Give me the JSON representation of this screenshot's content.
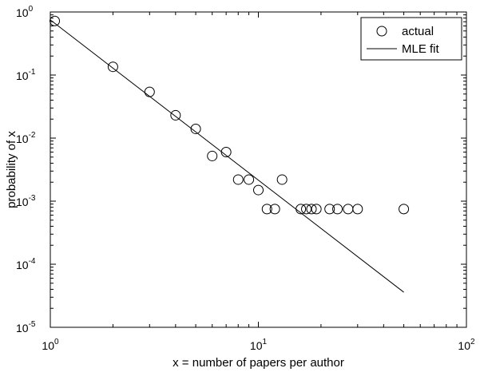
{
  "chart_data": {
    "type": "scatter",
    "xscale": "log",
    "yscale": "log",
    "xlim": [
      1,
      100
    ],
    "ylim": [
      1e-05,
      1
    ],
    "xlabel": "x = number of papers per author",
    "ylabel": "probability of x",
    "xticks": [
      {
        "value": 1,
        "base": "10",
        "exp": "0"
      },
      {
        "value": 10,
        "base": "10",
        "exp": "1"
      },
      {
        "value": 100,
        "base": "10",
        "exp": "2"
      }
    ],
    "yticks": [
      {
        "value": 1,
        "base": "10",
        "exp": "0"
      },
      {
        "value": 0.1,
        "base": "10",
        "exp": "-1"
      },
      {
        "value": 0.01,
        "base": "10",
        "exp": "-2"
      },
      {
        "value": 0.001,
        "base": "10",
        "exp": "-3"
      },
      {
        "value": 0.0001,
        "base": "10",
        "exp": "-4"
      },
      {
        "value": 1e-05,
        "base": "10",
        "exp": "-5"
      }
    ],
    "legend": {
      "position": "top-right",
      "entries": [
        {
          "label": "actual",
          "marker": "circle"
        },
        {
          "label": "MLE fit",
          "marker": "line"
        }
      ]
    },
    "series": [
      {
        "name": "actual",
        "kind": "scatter",
        "marker": "open-circle",
        "points": [
          {
            "x": 1.05,
            "y": 0.72
          },
          {
            "x": 2,
            "y": 0.135
          },
          {
            "x": 3,
            "y": 0.054
          },
          {
            "x": 4,
            "y": 0.023
          },
          {
            "x": 5,
            "y": 0.014
          },
          {
            "x": 6,
            "y": 0.0052
          },
          {
            "x": 7,
            "y": 0.006
          },
          {
            "x": 8,
            "y": 0.0022
          },
          {
            "x": 9,
            "y": 0.0022
          },
          {
            "x": 10,
            "y": 0.0015
          },
          {
            "x": 11,
            "y": 0.00075
          },
          {
            "x": 12,
            "y": 0.00075
          },
          {
            "x": 13,
            "y": 0.0022
          },
          {
            "x": 16,
            "y": 0.00075
          },
          {
            "x": 17,
            "y": 0.00075
          },
          {
            "x": 18,
            "y": 0.00075
          },
          {
            "x": 19,
            "y": 0.00075
          },
          {
            "x": 22,
            "y": 0.00075
          },
          {
            "x": 24,
            "y": 0.00075
          },
          {
            "x": 27,
            "y": 0.00075
          },
          {
            "x": 30,
            "y": 0.00075
          },
          {
            "x": 50,
            "y": 0.00075
          }
        ]
      },
      {
        "name": "MLE fit",
        "kind": "line",
        "points": [
          {
            "x": 1,
            "y": 0.75
          },
          {
            "x": 50,
            "y": 3.6e-05
          }
        ]
      }
    ]
  }
}
